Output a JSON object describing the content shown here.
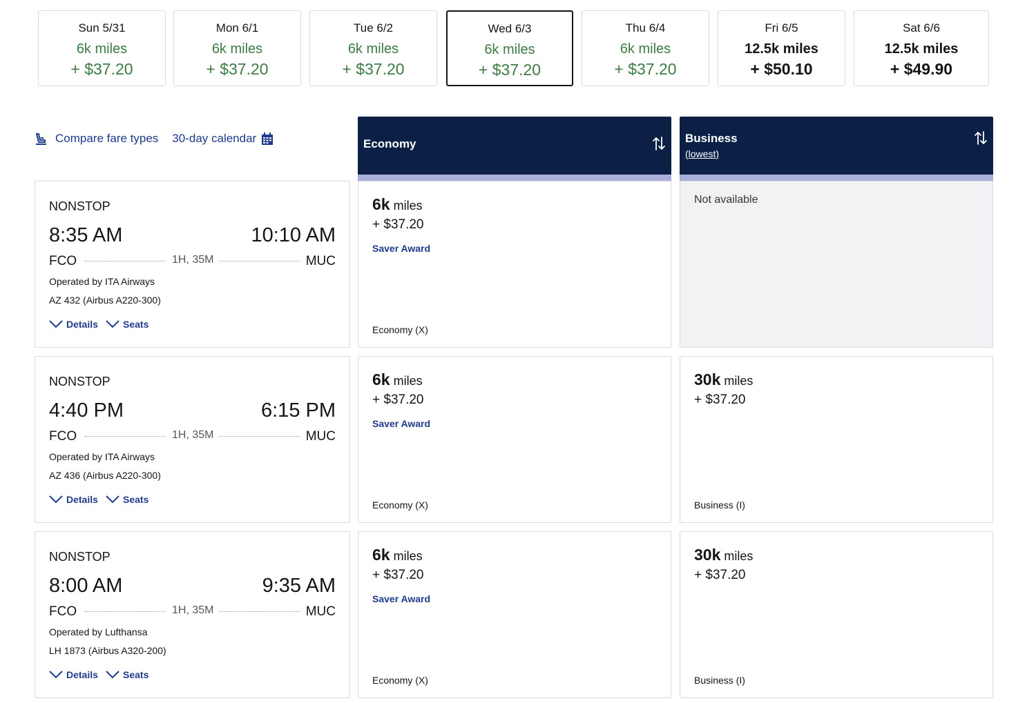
{
  "dates": [
    {
      "label": "Sun 5/31",
      "miles": "6k miles",
      "price": "+ $37.20",
      "selected": false,
      "highlight": true
    },
    {
      "label": "Mon 6/1",
      "miles": "6k miles",
      "price": "+ $37.20",
      "selected": false,
      "highlight": true
    },
    {
      "label": "Tue 6/2",
      "miles": "6k miles",
      "price": "+ $37.20",
      "selected": false,
      "highlight": true
    },
    {
      "label": "Wed 6/3",
      "miles": "6k miles",
      "price": "+ $37.20",
      "selected": true,
      "highlight": true
    },
    {
      "label": "Thu 6/4",
      "miles": "6k miles",
      "price": "+ $37.20",
      "selected": false,
      "highlight": true
    },
    {
      "label": "Fri 6/5",
      "miles": "12.5k miles",
      "price": "+ $50.10",
      "selected": false,
      "highlight": false
    },
    {
      "label": "Sat 6/6",
      "miles": "12.5k miles",
      "price": "+ $49.90",
      "selected": false,
      "highlight": false
    }
  ],
  "links": {
    "compare_label": "Compare fare types",
    "calendar_label": "30-day calendar",
    "compare_icon": "seat-icon",
    "calendar_icon": "calendar-icon"
  },
  "columns": {
    "economy": {
      "title": "Economy"
    },
    "business": {
      "title": "Business",
      "subtitle": "(lowest)"
    },
    "sort_icon": "sort-arrows-icon"
  },
  "flights": [
    {
      "stops": "NONSTOP",
      "depart": "8:35 AM",
      "arrive": "10:10 AM",
      "origin": "FCO",
      "destination": "MUC",
      "duration": "1H, 35M",
      "operator": "Operated by ITA Airways",
      "equipment": "AZ 432 (Airbus A220-300)",
      "details_label": "Details",
      "seats_label": "Seats",
      "economy": {
        "miles_num": "6k",
        "miles_unit": "miles",
        "price": "+ $37.20",
        "tag": "Saver Award",
        "fare_class": "Economy (X)"
      },
      "business": {
        "available": false,
        "not_available": "Not available"
      }
    },
    {
      "stops": "NONSTOP",
      "depart": "4:40 PM",
      "arrive": "6:15 PM",
      "origin": "FCO",
      "destination": "MUC",
      "duration": "1H, 35M",
      "operator": "Operated by ITA Airways",
      "equipment": "AZ 436 (Airbus A220-300)",
      "details_label": "Details",
      "seats_label": "Seats",
      "economy": {
        "miles_num": "6k",
        "miles_unit": "miles",
        "price": "+ $37.20",
        "tag": "Saver Award",
        "fare_class": "Economy (X)"
      },
      "business": {
        "available": true,
        "miles_num": "30k",
        "miles_unit": "miles",
        "price": "+ $37.20",
        "fare_class": "Business (I)"
      }
    },
    {
      "stops": "NONSTOP",
      "depart": "8:00 AM",
      "arrive": "9:35 AM",
      "origin": "FCO",
      "destination": "MUC",
      "duration": "1H, 35M",
      "operator": "Operated by Lufthansa",
      "equipment": "LH 1873 (Airbus A320-200)",
      "details_label": "Details",
      "seats_label": "Seats",
      "economy": {
        "miles_num": "6k",
        "miles_unit": "miles",
        "price": "+ $37.20",
        "tag": "Saver Award",
        "fare_class": "Economy (X)"
      },
      "business": {
        "available": true,
        "miles_num": "30k",
        "miles_unit": "miles",
        "price": "+ $37.20",
        "fare_class": "Business (I)"
      }
    }
  ],
  "colors": {
    "navy": "#0b2044",
    "link_blue": "#1f3a8a",
    "price_green": "#3d7a44",
    "header_stripe": "#a9aedb"
  }
}
